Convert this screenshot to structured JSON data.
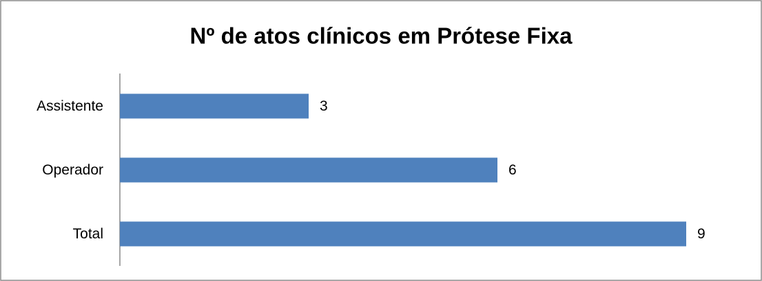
{
  "chart_data": {
    "type": "hbar",
    "title": "Nº de atos clínicos em Prótese Fixa",
    "categories": [
      "Assistente",
      "Operador",
      "Total"
    ],
    "values": [
      3,
      6,
      9
    ],
    "color": "#4f81bd",
    "xlim": [
      0,
      9
    ]
  }
}
